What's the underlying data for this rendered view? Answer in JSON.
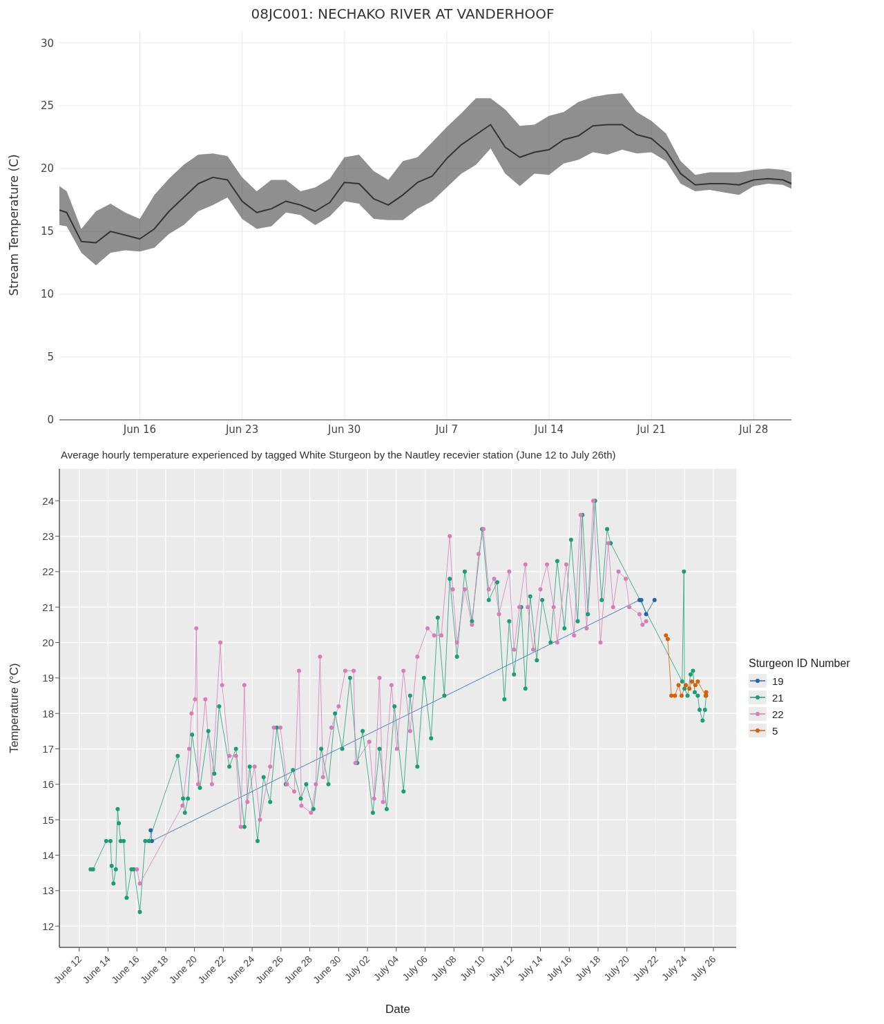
{
  "chart_data": [
    {
      "type": "line",
      "title": "08JC001: NECHAKO RIVER AT VANDERHOOF",
      "ylabel": "Stream Temperature (C)",
      "x": [
        "--06-10T12:00",
        "--06-11",
        "--06-12",
        "--06-13",
        "--06-14",
        "--06-15",
        "--06-16",
        "--06-17",
        "--06-18",
        "--06-19",
        "--06-20",
        "--06-21",
        "--06-22",
        "--06-23",
        "--06-24",
        "--06-25",
        "--06-26",
        "--06-27",
        "--06-28",
        "--06-29",
        "--06-30",
        "--07-01",
        "--07-02",
        "--07-03",
        "--07-04",
        "--07-05",
        "--07-06",
        "--07-07",
        "--07-08",
        "--07-09",
        "--07-10",
        "--07-11",
        "--07-12",
        "--07-13",
        "--07-14",
        "--07-15",
        "--07-16",
        "--07-17",
        "--07-18",
        "--07-19",
        "--07-20",
        "--07-21",
        "--07-22",
        "--07-23",
        "--07-24",
        "--07-25",
        "--07-26",
        "--07-27",
        "--07-28",
        "--07-29",
        "--07-30",
        "--07-30T14:00"
      ],
      "series": [
        {
          "color": "#333333",
          "values": [
            16.7,
            16.5,
            14.2,
            14.1,
            15.0,
            14.7,
            14.4,
            15.2,
            16.6,
            17.7,
            18.8,
            19.3,
            19.1,
            17.4,
            16.5,
            16.8,
            17.4,
            17.1,
            16.6,
            17.3,
            18.9,
            18.8,
            17.6,
            17.1,
            17.9,
            18.9,
            19.4,
            20.8,
            21.9,
            22.7,
            23.5,
            21.7,
            20.9,
            21.3,
            21.5,
            22.3,
            22.6,
            23.4,
            23.5,
            23.5,
            22.7,
            22.4,
            21.4,
            19.6,
            18.7,
            18.8,
            18.8,
            18.7,
            19.1,
            19.2,
            19.1,
            18.8
          ],
          "lower": [
            15.5,
            15.4,
            13.3,
            12.3,
            13.3,
            13.5,
            13.4,
            13.7,
            14.8,
            15.5,
            16.6,
            17.1,
            17.7,
            16.0,
            15.2,
            15.4,
            16.5,
            16.3,
            15.5,
            16.2,
            17.4,
            17.2,
            16.0,
            15.9,
            15.9,
            16.8,
            17.4,
            18.5,
            19.6,
            20.3,
            21.6,
            19.6,
            18.6,
            19.6,
            19.5,
            20.4,
            20.7,
            21.3,
            21.1,
            21.5,
            21.2,
            21.3,
            20.6,
            18.8,
            18.2,
            18.3,
            18.1,
            17.9,
            18.6,
            18.8,
            18.7,
            18.4
          ],
          "upper": [
            18.6,
            18.2,
            15.2,
            16.6,
            17.2,
            16.5,
            16.0,
            17.9,
            19.2,
            20.3,
            21.1,
            21.2,
            21.0,
            19.3,
            18.2,
            19.1,
            19.1,
            18.2,
            18.5,
            19.2,
            20.9,
            21.1,
            19.8,
            19.1,
            20.6,
            20.9,
            22.1,
            23.3,
            24.4,
            25.6,
            25.6,
            24.7,
            23.4,
            23.5,
            24.2,
            24.5,
            25.3,
            25.7,
            25.9,
            26.0,
            24.5,
            23.8,
            22.8,
            20.6,
            19.5,
            19.7,
            19.7,
            19.7,
            19.9,
            20.0,
            19.9,
            19.7
          ]
        }
      ],
      "xlim": [
        "--06-10T12:00",
        "--07-30T14:00"
      ],
      "xticks": [
        {
          "value": "--06-16",
          "label": "Jun 16"
        },
        {
          "value": "--06-23",
          "label": "Jun 23"
        },
        {
          "value": "--06-30",
          "label": "Jun 30"
        },
        {
          "value": "--07-07",
          "label": "Jul 7"
        },
        {
          "value": "--07-14",
          "label": "Jul 14"
        },
        {
          "value": "--07-21",
          "label": "Jul 21"
        },
        {
          "value": "--07-28",
          "label": "Jul 28"
        }
      ],
      "ylim": [
        0,
        31
      ],
      "yticks": [
        0,
        5,
        10,
        15,
        20,
        25,
        30
      ],
      "grid": true
    },
    {
      "type": "line",
      "title": "Average hourly temperature experienced by tagged White Sturgeon by the Nautley recevier station (June 12 to July 26th)",
      "xlabel": "Date",
      "ylabel": "Temperature (°C)",
      "legend_title": "Sturgeon ID Number",
      "legend": "right",
      "marker": "circle",
      "series": [
        {
          "name": "19",
          "color": "#2166ac",
          "x": [
            "--06-16T23:00",
            "--06-17T01:00",
            "--07-20T21:00",
            "--07-21T00:00",
            "--07-21T08:00",
            "--07-21T22:00"
          ],
          "values": [
            14.7,
            14.4,
            21.2,
            21.2,
            20.8,
            21.2
          ]
        },
        {
          "name": "21",
          "color": "#1b9e77",
          "x": [
            "--06-12T19:00",
            "--06-12T23:00",
            "--06-13T21:00",
            "--06-14T04:00",
            "--06-14T06:00",
            "--06-14T09:00",
            "--06-14T13:00",
            "--06-14T16:00",
            "--06-14T18:00",
            "--06-14T21:00",
            "--06-15T02:00",
            "--06-15T07:00",
            "--06-15T15:00",
            "--06-15T19:00",
            "--06-16T05:00",
            "--06-16T14:00",
            "--06-16T20:00",
            "--06-18T20:00",
            "--06-19T05:00",
            "--06-19T08:00",
            "--06-19T13:00",
            "--06-19T20:00",
            "--06-20T09:00",
            "--06-20T23:00",
            "--06-21T09:00",
            "--06-21T17:00",
            "--06-22T10:00",
            "--06-22T21:00",
            "--06-23T11:00",
            "--06-23T20:00",
            "--06-24T09:00",
            "--06-24T19:00",
            "--06-25T06:00",
            "--06-25T17:00",
            "--06-26T08:00",
            "--06-26T20:00",
            "--06-27T09:00",
            "--06-27T18:00",
            "--06-28T06:00",
            "--06-28T19:00",
            "--06-29T07:00",
            "--06-29T18:00",
            "--06-30T06:00",
            "--06-30T19:00",
            "--07-01T07:00",
            "--07-01T16:00",
            "--07-02T09:00",
            "--07-02T20:00",
            "--07-03T08:00",
            "--07-03T21:00",
            "--07-04T12:00",
            "--07-04T23:00",
            "--07-05T11:00",
            "--07-05T22:00",
            "--07-06T10:00",
            "--07-06T21:00",
            "--07-07T08:00",
            "--07-07T17:00",
            "--07-08T05:00",
            "--07-08T18:00",
            "--07-09T06:00",
            "--07-09T23:00",
            "--07-10T10:00",
            "--07-11T00:00",
            "--07-11T12:00",
            "--07-11T20:00",
            "--07-12T04:00",
            "--07-12T16:00",
            "--07-12T23:00",
            "--07-13T07:00",
            "--07-13T18:00",
            "--07-14T03:00",
            "--07-14T17:00",
            "--07-15T04:00",
            "--07-15T16:00",
            "--07-16T03:00",
            "--07-16T14:00",
            "--07-16T22:00",
            "--07-17T07:00",
            "--07-17T19:00",
            "--07-18T06:00",
            "--07-18T15:00",
            "--07-18T21:00",
            "--07-23T20:00",
            "--07-23T23:00",
            "--07-24T00:00",
            "--07-24T05:00",
            "--07-24T10:00",
            "--07-24T14:00",
            "--07-24T17:00",
            "--07-24T22:00",
            "--07-25T01:00",
            "--07-25T06:00",
            "--07-25T10:00",
            "--07-25T12:00"
          ],
          "values": [
            13.6,
            13.6,
            14.4,
            14.4,
            13.7,
            13.2,
            13.6,
            15.3,
            14.9,
            14.4,
            14.4,
            12.8,
            13.6,
            13.6,
            12.4,
            14.4,
            14.4,
            16.8,
            15.6,
            15.2,
            15.6,
            17.4,
            15.9,
            17.5,
            16.3,
            18.2,
            16.5,
            17.0,
            14.8,
            16.5,
            14.4,
            16.2,
            15.5,
            17.6,
            16.0,
            16.4,
            15.6,
            16.0,
            15.3,
            17.0,
            16.0,
            18.0,
            17.0,
            19.0,
            16.6,
            17.5,
            15.2,
            17.0,
            15.3,
            18.2,
            15.8,
            18.5,
            16.5,
            19.0,
            17.3,
            20.7,
            18.5,
            21.8,
            19.6,
            22.0,
            20.6,
            23.2,
            21.2,
            21.7,
            18.4,
            20.6,
            19.1,
            21.0,
            18.7,
            21.3,
            19.5,
            21.2,
            20.0,
            22.3,
            20.4,
            22.9,
            20.6,
            23.6,
            20.8,
            24.0,
            21.2,
            23.2,
            22.8,
            18.9,
            22.0,
            18.7,
            18.5,
            19.1,
            19.2,
            18.6,
            18.5,
            18.1,
            17.8,
            18.1,
            18.5
          ]
        },
        {
          "name": "22",
          "color": "#d77fb4",
          "x": [
            "--06-16T00:00",
            "--06-16T05:00",
            "--06-19T04:00",
            "--06-19T15:00",
            "--06-19T19:00",
            "--06-20T01:00",
            "--06-20T03:00",
            "--06-20T06:00",
            "--06-20T18:00",
            "--06-21T05:00",
            "--06-21T19:00",
            "--06-21T22:00",
            "--06-22T10:00",
            "--06-22T21:00",
            "--06-23T05:00",
            "--06-23T11:00",
            "--06-23T16:00",
            "--06-24T04:00",
            "--06-24T13:00",
            "--06-25T06:00",
            "--06-25T12:00",
            "--06-25T23:00",
            "--06-26T10:00",
            "--06-26T22:00",
            "--06-27T06:00",
            "--06-27T10:00",
            "--06-28T02:00",
            "--06-28T10:00",
            "--06-28T17:00",
            "--06-28T22:00",
            "--06-29T12:00",
            "--06-30T00:00",
            "--06-30T11:00",
            "--07-01T01:00",
            "--07-01T04:00",
            "--07-02T03:00",
            "--07-02T11:00",
            "--07-02T20:00",
            "--07-03T02:00",
            "--07-03T16:00",
            "--07-04T01:00",
            "--07-04T12:00",
            "--07-04T23:00",
            "--07-05T11:00",
            "--07-06T04:00",
            "--07-06T15:00",
            "--07-07T03:00",
            "--07-07T17:00",
            "--07-07T22:00",
            "--07-08T05:00",
            "--07-08T18:00",
            "--07-09T06:00",
            "--07-09T17:00",
            "--07-10T01:00",
            "--07-10T10:00",
            "--07-10T19:00",
            "--07-11T03:00",
            "--07-11T20:00",
            "--07-12T04:00",
            "--07-12T13:00",
            "--07-12T23:00",
            "--07-13T03:00",
            "--07-13T12:00",
            "--07-14T00:00",
            "--07-14T11:00",
            "--07-14T22:00",
            "--07-15T04:00",
            "--07-15T19:00",
            "--07-16T08:00",
            "--07-16T19:00",
            "--07-17T05:00",
            "--07-17T16:00",
            "--07-18T04:00",
            "--07-18T17:00",
            "--07-19T01:00",
            "--07-19T10:00",
            "--07-19T22:00",
            "--07-20T04:00",
            "--07-20T21:00",
            "--07-21T02:00",
            "--07-21T08:00"
          ],
          "values": [
            13.6,
            13.2,
            15.4,
            17.0,
            18.0,
            18.4,
            20.4,
            16.0,
            18.4,
            16.0,
            20.0,
            18.8,
            16.8,
            16.8,
            14.8,
            18.8,
            15.5,
            16.5,
            15.0,
            16.5,
            17.6,
            17.6,
            16.0,
            15.8,
            19.2,
            15.4,
            15.2,
            16.0,
            19.6,
            16.2,
            17.6,
            18.2,
            19.2,
            19.2,
            16.6,
            17.2,
            15.6,
            19.0,
            15.5,
            18.8,
            17.0,
            19.2,
            17.5,
            19.6,
            20.4,
            20.2,
            20.2,
            23.0,
            21.5,
            20.0,
            21.5,
            20.5,
            22.5,
            23.2,
            21.5,
            21.8,
            20.8,
            22.0,
            19.8,
            21.0,
            22.2,
            21.0,
            19.8,
            21.5,
            22.2,
            21.0,
            20.0,
            22.2,
            20.2,
            23.6,
            20.4,
            24.0,
            20.0,
            22.8,
            21.0,
            22.0,
            21.8,
            21.0,
            20.8,
            20.5,
            20.6
          ]
        },
        {
          "name": "5",
          "color": "#d95f02",
          "x": [
            "--07-22T17:00",
            "--07-22T20:00",
            "--07-23T02:00",
            "--07-23T08:00",
            "--07-23T14:00",
            "--07-23T19:00",
            "--07-24T02:00",
            "--07-24T08:00",
            "--07-24T12:00",
            "--07-24T18:00",
            "--07-24T22:00",
            "--07-25T11:00",
            "--07-25T12:00"
          ],
          "values": [
            20.2,
            20.1,
            18.5,
            18.5,
            18.8,
            18.5,
            18.8,
            18.7,
            18.9,
            18.8,
            18.9,
            18.5,
            18.6
          ]
        }
      ],
      "xlim": [
        "--06-10T15:00",
        "--07-27T14:00"
      ],
      "xticks": [
        {
          "value": "--06-12",
          "label": "June 12"
        },
        {
          "value": "--06-14",
          "label": "June 14"
        },
        {
          "value": "--06-16",
          "label": "June 16"
        },
        {
          "value": "--06-18",
          "label": "June 18"
        },
        {
          "value": "--06-20",
          "label": "June 20"
        },
        {
          "value": "--06-22",
          "label": "June 22"
        },
        {
          "value": "--06-24",
          "label": "June 24"
        },
        {
          "value": "--06-26",
          "label": "June 26"
        },
        {
          "value": "--06-28",
          "label": "June 28"
        },
        {
          "value": "--06-30",
          "label": "June 30"
        },
        {
          "value": "--07-02",
          "label": "July 02"
        },
        {
          "value": "--07-04",
          "label": "July 04"
        },
        {
          "value": "--07-06",
          "label": "July 06"
        },
        {
          "value": "--07-08",
          "label": "July 08"
        },
        {
          "value": "--07-10",
          "label": "July 10"
        },
        {
          "value": "--07-12",
          "label": "July 12"
        },
        {
          "value": "--07-14",
          "label": "July 14"
        },
        {
          "value": "--07-16",
          "label": "July 16"
        },
        {
          "value": "--07-18",
          "label": "July 18"
        },
        {
          "value": "--07-20",
          "label": "July 20"
        },
        {
          "value": "--07-22",
          "label": "July 22"
        },
        {
          "value": "--07-24",
          "label": "July 24"
        },
        {
          "value": "--07-26",
          "label": "July 26"
        }
      ],
      "ylim": [
        11.4,
        24.9
      ],
      "yticks": [
        12,
        13,
        14,
        15,
        16,
        17,
        18,
        19,
        20,
        21,
        22,
        23,
        24
      ],
      "grid": true
    }
  ]
}
